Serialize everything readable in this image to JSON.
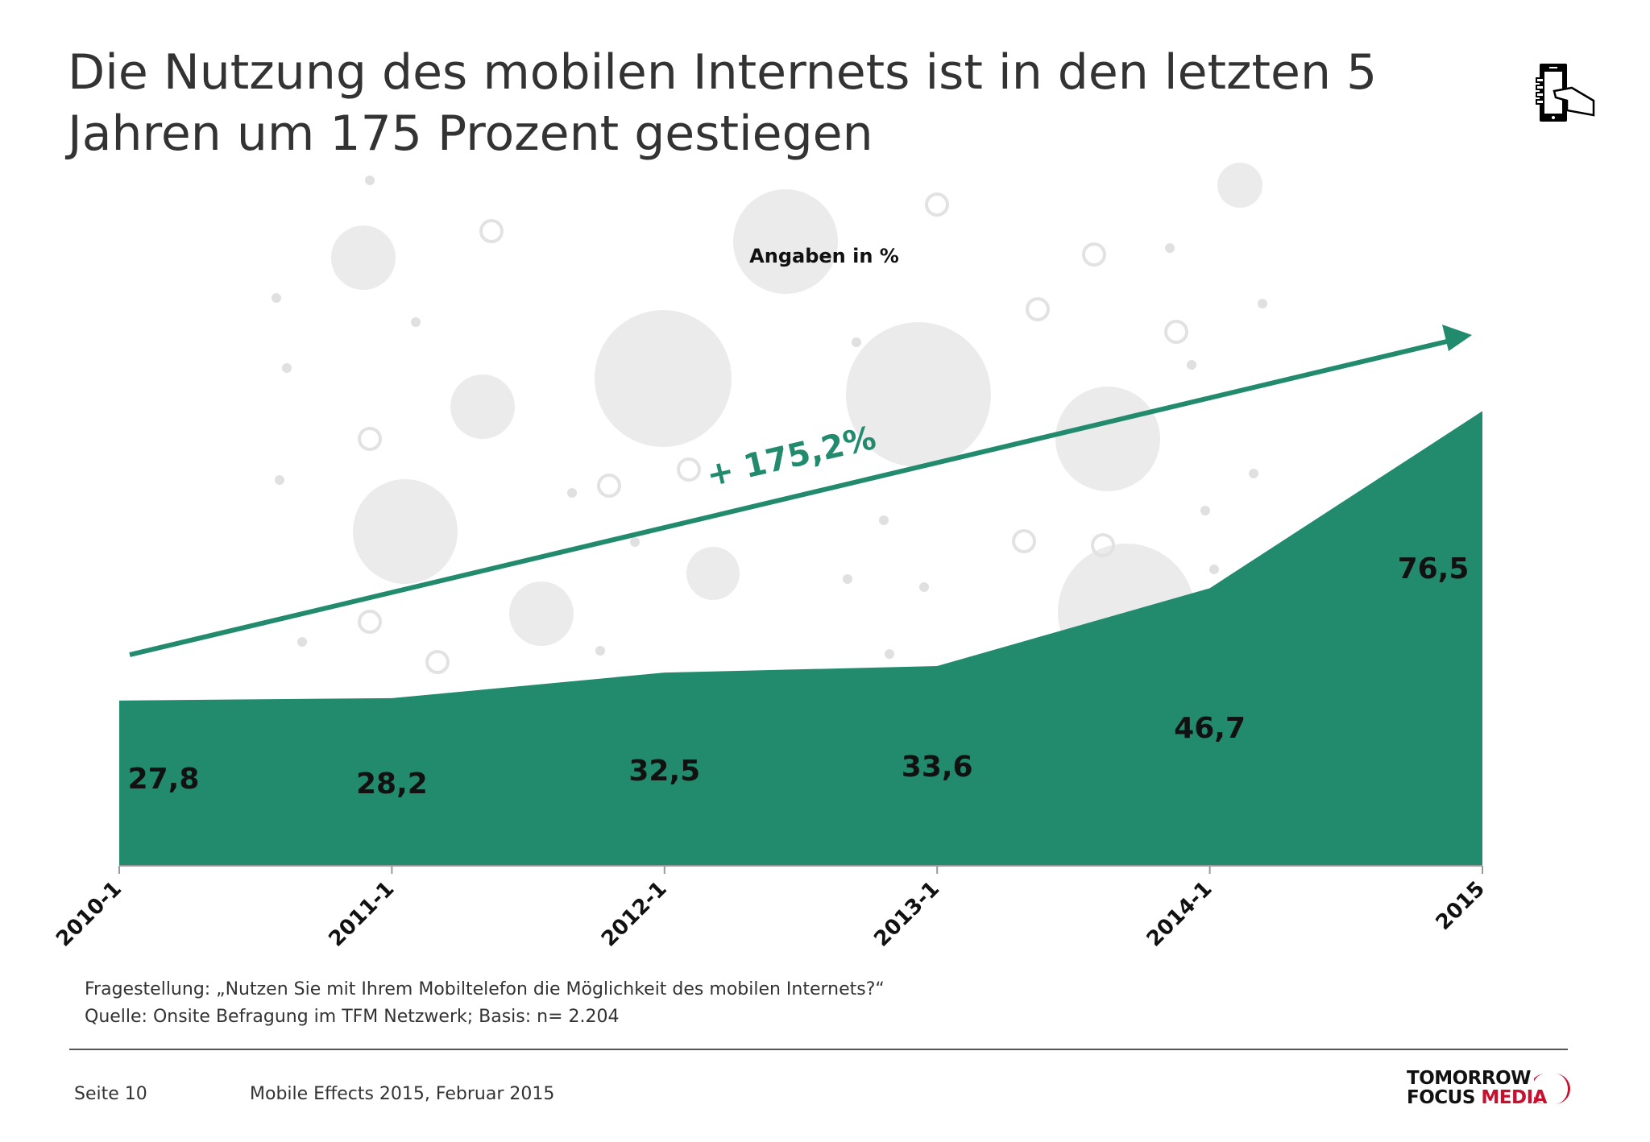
{
  "title": "Die Nutzung des mobilen Internets ist in den letzten 5 Jahren um 175 Prozent gestiegen",
  "header_icon": "hand-holding-smartphone-icon",
  "chart_data": {
    "type": "area",
    "subtitle": "Angaben in %",
    "categories": [
      "2010-1",
      "2011-1",
      "2012-1",
      "2013-1",
      "2014-1",
      "2015"
    ],
    "values": [
      27.8,
      28.2,
      32.5,
      33.6,
      46.7,
      76.5
    ],
    "value_labels": [
      "27,8",
      "28,2",
      "32,5",
      "33,6",
      "46,7",
      "76,5"
    ],
    "ylim": [
      0,
      100
    ],
    "grid": false,
    "color": "#228B6E",
    "annotation": {
      "text": "+ 175,2%",
      "type": "trend-arrow",
      "color": "#228B6E"
    }
  },
  "footnotes": {
    "question": "Fragestellung: „Nutzen Sie mit Ihrem Mobiltelefon die Möglichkeit des mobilen Internets?“",
    "source": "Quelle: Onsite Befragung im TFM Netzwerk; Basis: n= 2.204"
  },
  "footer": {
    "page": "Seite 10",
    "report": "Mobile Effects 2015, Februar 2015",
    "logo_line1": "TOMORROW",
    "logo_line2a": "FOCUS",
    "logo_line2b": "MEDIA",
    "logo_accent": "#C8102E"
  }
}
